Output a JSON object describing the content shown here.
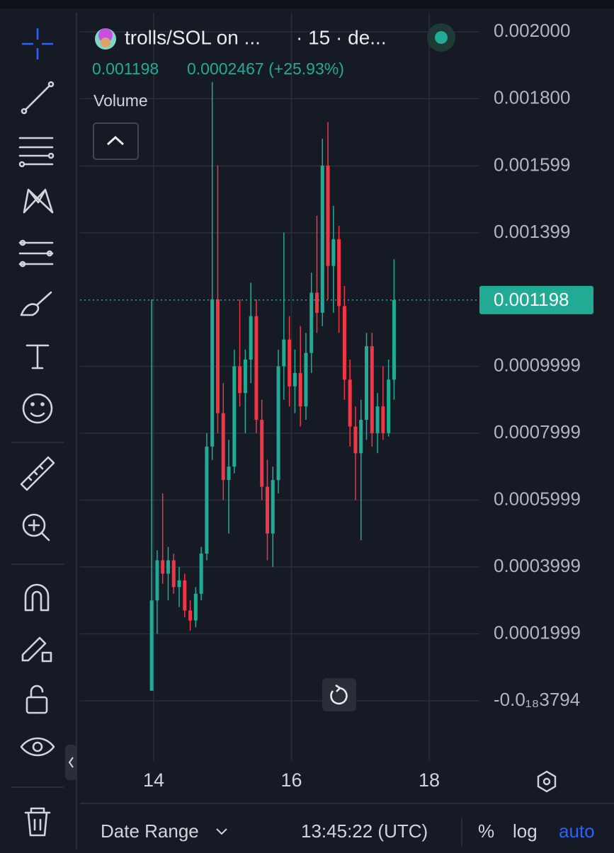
{
  "header": {
    "title": "trolls/SOL on ...",
    "interval": "· 15 · de...",
    "price": "0.001198",
    "change": "0.0002467 (+25.93%)",
    "volume_label": "Volume"
  },
  "footer": {
    "date_range": "Date Range",
    "time": "13:45:22 (UTC)",
    "percent": "%",
    "log": "log",
    "auto": "auto"
  },
  "chart_data": {
    "type": "candlestick",
    "x": [
      13.97,
      14.05,
      14.13,
      14.21,
      14.29,
      14.37,
      14.45,
      14.53,
      14.61,
      14.69,
      14.77,
      14.85,
      14.93,
      15.01,
      15.09,
      15.17,
      15.25,
      15.33,
      15.41,
      15.49,
      15.57,
      15.65,
      15.73,
      15.81,
      15.89,
      15.97,
      16.05,
      16.13,
      16.21,
      16.29,
      16.37,
      16.45,
      16.53,
      16.61,
      16.69,
      16.77,
      16.85,
      16.93,
      17.01,
      17.09,
      17.17,
      17.25,
      17.33,
      17.41,
      17.49
    ],
    "candles": [
      [
        3e-05,
        0.0012,
        3e-05,
        0.0003
      ],
      [
        0.0003,
        0.00045,
        0.0002,
        0.00042
      ],
      [
        0.00042,
        0.00062,
        0.00035,
        0.00038
      ],
      [
        0.00038,
        0.00046,
        0.0003,
        0.00042
      ],
      [
        0.00042,
        0.00044,
        0.00032,
        0.00034
      ],
      [
        0.00034,
        0.0004,
        0.00028,
        0.00036
      ],
      [
        0.00036,
        0.00038,
        0.00025,
        0.00027
      ],
      [
        0.00027,
        0.0003,
        0.00021,
        0.00024
      ],
      [
        0.00024,
        0.00034,
        0.00022,
        0.00032
      ],
      [
        0.00032,
        0.00046,
        0.0003,
        0.00044
      ],
      [
        0.00044,
        0.0008,
        0.00042,
        0.00076
      ],
      [
        0.00076,
        0.00185,
        0.00072,
        0.0012
      ],
      [
        0.0012,
        0.0016,
        0.0008,
        0.00086
      ],
      [
        0.00086,
        0.00095,
        0.0006,
        0.00066
      ],
      [
        0.00066,
        0.00078,
        0.0005,
        0.0007
      ],
      [
        0.0007,
        0.00105,
        0.00068,
        0.001
      ],
      [
        0.001,
        0.0012,
        0.00088,
        0.00092
      ],
      [
        0.00092,
        0.00105,
        0.0008,
        0.00102
      ],
      [
        0.00102,
        0.00125,
        0.00095,
        0.00115
      ],
      [
        0.00115,
        0.0012,
        0.0008,
        0.00084
      ],
      [
        0.00084,
        0.0009,
        0.0006,
        0.00064
      ],
      [
        0.00064,
        0.00072,
        0.00042,
        0.0005
      ],
      [
        0.0005,
        0.0007,
        0.0004,
        0.00066
      ],
      [
        0.00066,
        0.00105,
        0.00062,
        0.001
      ],
      [
        0.001,
        0.0014,
        0.0009,
        0.00108
      ],
      [
        0.00108,
        0.00115,
        0.00088,
        0.00094
      ],
      [
        0.00094,
        0.00105,
        0.00086,
        0.00098
      ],
      [
        0.00098,
        0.00112,
        0.00082,
        0.00088
      ],
      [
        0.00088,
        0.0011,
        0.00084,
        0.00104
      ],
      [
        0.00104,
        0.00128,
        0.00098,
        0.00122
      ],
      [
        0.00122,
        0.00145,
        0.0011,
        0.00116
      ],
      [
        0.00116,
        0.00168,
        0.00112,
        0.0016
      ],
      [
        0.0016,
        0.00173,
        0.0012,
        0.0013
      ],
      [
        0.0013,
        0.00148,
        0.00116,
        0.00138
      ],
      [
        0.00138,
        0.00142,
        0.0011,
        0.00118
      ],
      [
        0.00118,
        0.00124,
        0.0009,
        0.00096
      ],
      [
        0.00096,
        0.00102,
        0.00076,
        0.00082
      ],
      [
        0.00082,
        0.00088,
        0.0006,
        0.00074
      ],
      [
        0.00074,
        0.0009,
        0.00048,
        0.00084
      ],
      [
        0.00084,
        0.0011,
        0.00078,
        0.00106
      ],
      [
        0.00106,
        0.0011,
        0.00076,
        0.0008
      ],
      [
        0.0008,
        0.00092,
        0.00074,
        0.00088
      ],
      [
        0.00088,
        0.001,
        0.00078,
        0.0008
      ],
      [
        0.0008,
        0.00102,
        0.00079,
        0.00096
      ],
      [
        0.00096,
        0.00132,
        0.0009,
        0.001198
      ]
    ],
    "up_color": "#22ab94",
    "down_color": "#f23645",
    "last_price": 0.001198,
    "xlim": [
      12.93,
      18.73
    ],
    "xticks": [
      14,
      16,
      18
    ],
    "ylim": [
      -0.00018,
      0.002057
    ],
    "yticks": [
      {
        "value": 0.002,
        "label": "0.002000"
      },
      {
        "value": 0.0018,
        "label": "0.001800"
      },
      0.001599,
      0.001399,
      0.0009999,
      0.0007999,
      0.0005999,
      0.0003999,
      0.0001999,
      {
        "value": -3.794e-22,
        "label": "-0.0₁₈3794"
      }
    ],
    "grid": true
  }
}
